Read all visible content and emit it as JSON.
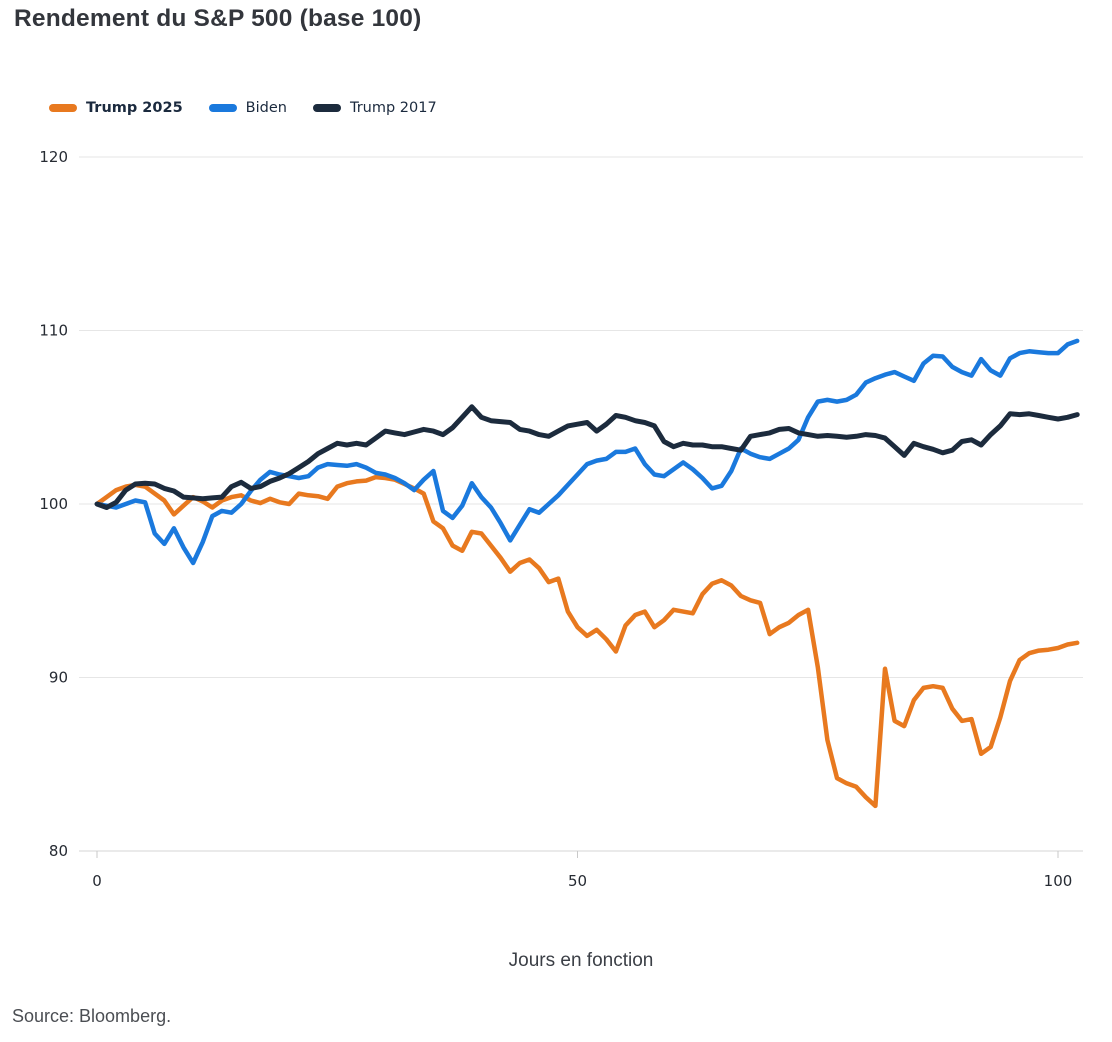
{
  "title": "Rendement du S&P 500 (base 100)",
  "source": "Source: Bloomberg.",
  "colors": {
    "background": "#ffffff",
    "title_text": "#33363c",
    "legend_text": "#1b2a3e",
    "tick_text": "#262b33",
    "gridline": "#e6e6e6",
    "axis_line": "#d4d4d4",
    "tick_mark": "#c9c9c9",
    "trump_2025": "#e8791f",
    "biden": "#1a79dd",
    "trump_2017": "#1c2b3d"
  },
  "chart_data": {
    "type": "line",
    "title": "Rendement du S&P 500 (base 100)",
    "xlabel": "Jours en fonction",
    "ylabel": "",
    "xlim": [
      0,
      102
    ],
    "ylim": [
      80,
      120
    ],
    "x_ticks": [
      0,
      50,
      100
    ],
    "y_ticks": [
      80,
      90,
      100,
      110,
      120
    ],
    "grid": "horizontal",
    "legend_position": "top-left",
    "x_start": 0,
    "x_step": 1,
    "series": [
      {
        "name": "Trump 2025",
        "color": "#e8791f",
        "values": [
          100,
          100.4,
          100.8,
          101.0,
          101.1,
          101.0,
          100.6,
          100.2,
          99.4,
          99.9,
          100.4,
          100.15,
          99.8,
          100.2,
          100.4,
          100.5,
          100.2,
          100.05,
          100.3,
          100.1,
          100.0,
          100.6,
          100.5,
          100.45,
          100.3,
          101.0,
          101.2,
          101.3,
          101.35,
          101.55,
          101.5,
          101.4,
          101.15,
          100.9,
          100.6,
          99.0,
          98.6,
          97.6,
          97.3,
          98.4,
          98.3,
          97.6,
          96.9,
          96.1,
          96.6,
          96.8,
          96.3,
          95.5,
          95.7,
          93.8,
          92.9,
          92.4,
          92.75,
          92.2,
          91.5,
          93.0,
          93.6,
          93.8,
          92.9,
          93.3,
          93.9,
          93.8,
          93.7,
          94.8,
          95.4,
          95.6,
          95.3,
          94.7,
          94.45,
          94.3,
          92.5,
          92.9,
          93.15,
          93.6,
          93.9,
          90.6,
          86.4,
          84.2,
          83.9,
          83.7,
          83.1,
          82.6,
          90.5,
          87.5,
          87.2,
          88.7,
          89.4,
          89.5,
          89.4,
          88.2,
          87.5,
          87.6,
          85.6,
          86.0,
          87.7,
          89.8,
          91.0,
          91.4,
          91.55,
          91.6,
          91.7,
          91.9,
          92.0
        ]
      },
      {
        "name": "Biden",
        "color": "#1a79dd",
        "values": [
          100,
          99.9,
          99.8,
          100.0,
          100.2,
          100.1,
          98.3,
          97.7,
          98.6,
          97.5,
          96.6,
          97.8,
          99.3,
          99.6,
          99.5,
          100.0,
          100.75,
          101.4,
          101.85,
          101.7,
          101.6,
          101.5,
          101.6,
          102.1,
          102.3,
          102.25,
          102.2,
          102.3,
          102.1,
          101.8,
          101.7,
          101.5,
          101.2,
          100.8,
          101.4,
          101.9,
          99.6,
          99.2,
          99.9,
          101.2,
          100.4,
          99.8,
          98.9,
          97.9,
          98.8,
          99.7,
          99.5,
          100.0,
          100.5,
          101.1,
          101.7,
          102.3,
          102.5,
          102.6,
          103.0,
          103.0,
          103.2,
          102.3,
          101.7,
          101.6,
          102.0,
          102.4,
          102.0,
          101.5,
          100.9,
          101.05,
          101.9,
          103.2,
          102.9,
          102.7,
          102.6,
          102.9,
          103.2,
          103.7,
          105.0,
          105.9,
          106.0,
          105.9,
          106.0,
          106.3,
          107.0,
          107.25,
          107.45,
          107.6,
          107.35,
          107.1,
          108.1,
          108.55,
          108.5,
          107.9,
          107.6,
          107.4,
          108.35,
          107.7,
          107.4,
          108.4,
          108.7,
          108.8,
          108.75,
          108.7,
          108.7,
          109.2,
          109.4
        ]
      },
      {
        "name": "Trump 2017",
        "color": "#1c2b3d",
        "values": [
          100,
          99.8,
          100.1,
          100.8,
          101.15,
          101.2,
          101.15,
          100.9,
          100.75,
          100.4,
          100.35,
          100.3,
          100.35,
          100.4,
          101.0,
          101.25,
          100.9,
          101.0,
          101.3,
          101.5,
          101.75,
          102.1,
          102.45,
          102.9,
          103.2,
          103.5,
          103.4,
          103.5,
          103.4,
          103.8,
          104.2,
          104.1,
          104.0,
          104.15,
          104.3,
          104.2,
          104.0,
          104.4,
          105.0,
          105.6,
          105.0,
          104.8,
          104.75,
          104.7,
          104.3,
          104.2,
          104.0,
          103.9,
          104.2,
          104.5,
          104.6,
          104.7,
          104.2,
          104.6,
          105.1,
          105.0,
          104.8,
          104.7,
          104.5,
          103.6,
          103.3,
          103.5,
          103.4,
          103.4,
          103.3,
          103.3,
          103.2,
          103.1,
          103.9,
          104.0,
          104.1,
          104.3,
          104.35,
          104.1,
          104.0,
          103.9,
          103.95,
          103.9,
          103.85,
          103.9,
          104.0,
          103.95,
          103.8,
          103.3,
          102.8,
          103.5,
          103.3,
          103.15,
          102.95,
          103.1,
          103.6,
          103.7,
          103.4,
          104.0,
          104.5,
          105.2,
          105.15,
          105.2,
          105.1,
          105.0,
          104.9,
          105.0,
          105.15
        ]
      }
    ]
  }
}
